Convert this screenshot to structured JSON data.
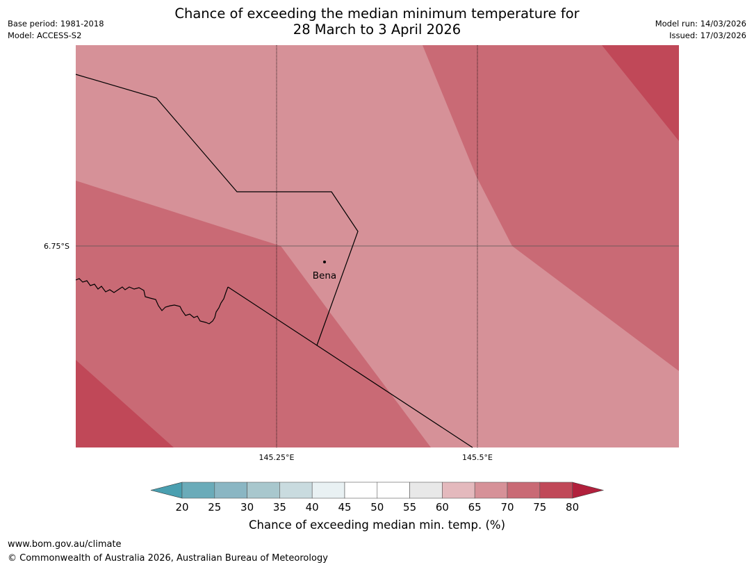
{
  "title": {
    "line1": "Chance of exceeding the median minimum temperature for",
    "line2": "28 March to 3 April 2026"
  },
  "meta_left": {
    "base_period": "Base period: 1981-2018",
    "model": "Model: ACCESS-S2"
  },
  "meta_right": {
    "model_run": "Model run: 14/03/2026",
    "issued": "Issued: 17/03/2026"
  },
  "map": {
    "lat_label": "6.75°S",
    "lon_labels": [
      "145.25°E",
      "145.5°E"
    ],
    "place": {
      "name": "Bena"
    },
    "category_colors": {
      "60-65": "#e4b9bd",
      "65-70": "#d69198",
      "70-75": "#c96a75",
      "75-80": "#c04858",
      "80+": "#b1203c"
    }
  },
  "legend": {
    "title": "Chance of exceeding median min. temp. (%)",
    "ticks": [
      "20",
      "25",
      "30",
      "35",
      "40",
      "45",
      "50",
      "55",
      "60",
      "65",
      "70",
      "75",
      "80"
    ],
    "colors": [
      "#6aabb9",
      "#8ab6c3",
      "#a8c7cd",
      "#c9dbdf",
      "#e9f1f3",
      "#ffffff",
      "#ffffff",
      "#e8e8e8",
      "#e4b9bd",
      "#d69198",
      "#c96a75",
      "#c04858"
    ],
    "under_color": "#4a9fb0",
    "over_color": "#b1203c"
  },
  "footer": {
    "url": "www.bom.gov.au/climate",
    "copyright": "© Commonwealth of Australia 2026, Australian Bureau of Meteorology"
  }
}
